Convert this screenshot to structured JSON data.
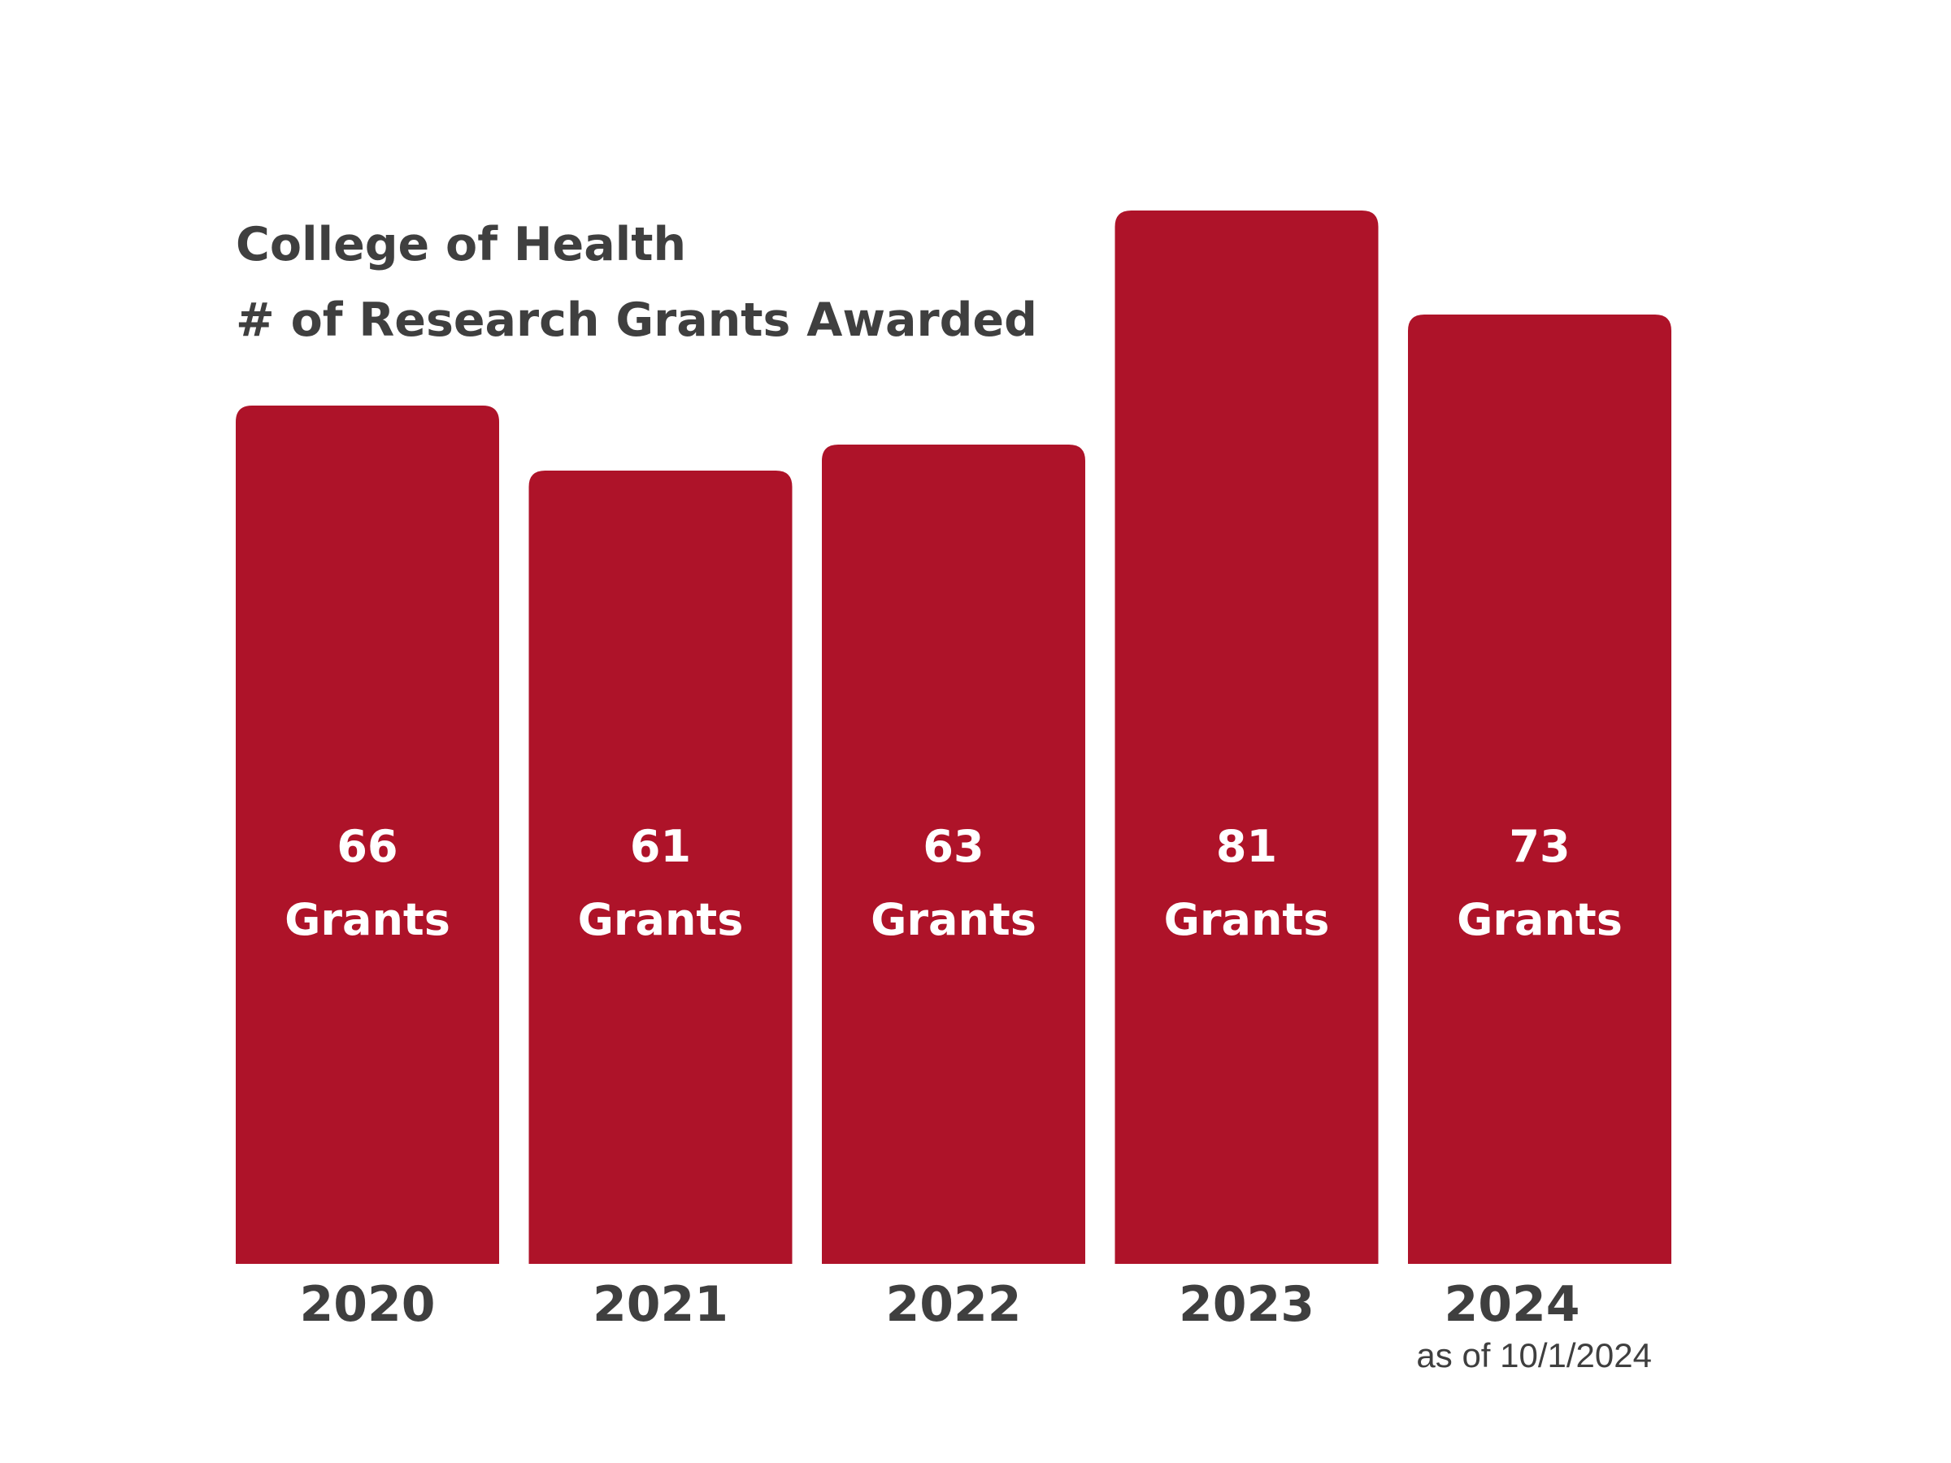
{
  "chart_data": {
    "type": "bar",
    "title_lines": [
      "College of Health",
      "# of Research Grants Awarded"
    ],
    "categories": [
      "2020",
      "2021",
      "2022",
      "2023",
      "2024"
    ],
    "values": [
      66,
      61,
      63,
      81,
      73
    ],
    "value_unit": "Grants",
    "notes": [
      "",
      "",
      "",
      "",
      "as of 10/1/2024"
    ],
    "xlabel": "",
    "ylabel": "",
    "grid": false,
    "colors": {
      "bar": "#ae1329",
      "text": "#3f3f3f",
      "bar_text": "#ffffff"
    }
  }
}
